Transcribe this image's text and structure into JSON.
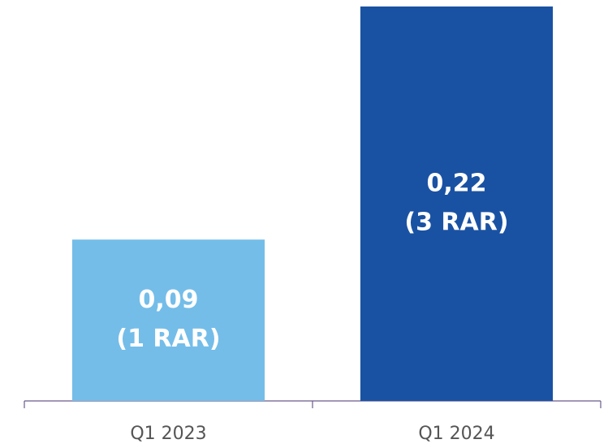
{
  "chart_data": {
    "type": "bar",
    "categories": [
      "Q1 2023",
      "Q1 2024"
    ],
    "values": [
      0.09,
      0.22
    ],
    "value_labels": [
      "0,09",
      "0,22"
    ],
    "annotations": [
      "(1 RAR)",
      "(3 RAR)"
    ],
    "colors": [
      "#74bde9",
      "#1a52a3"
    ],
    "ylim": [
      0,
      0.22
    ]
  }
}
